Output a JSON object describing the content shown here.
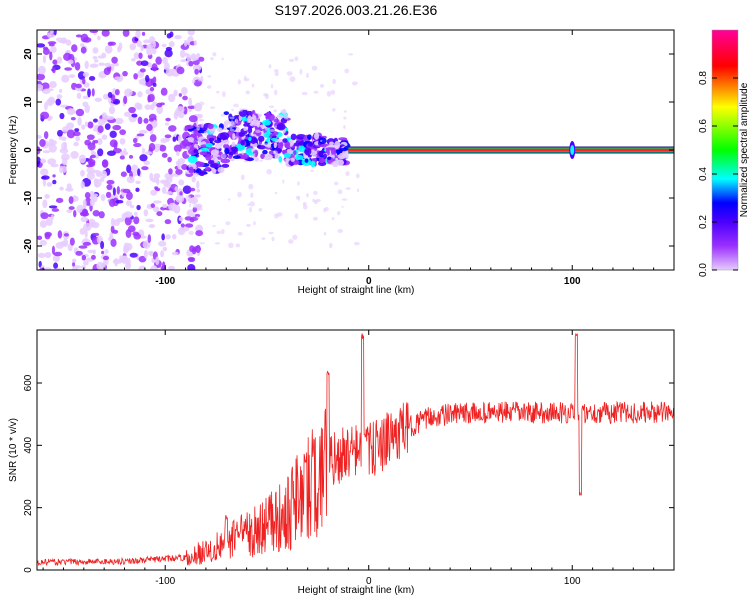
{
  "title": "S197.2026.003.21.26.E36",
  "chart_data": [
    {
      "type": "heatmap",
      "name": "spectrogram",
      "xlabel": "Height of straight line (km)",
      "ylabel": "Frequency (Hz)",
      "xlim": [
        -163,
        150
      ],
      "ylim": [
        -25,
        25
      ],
      "xticks": [
        -100,
        0,
        100
      ],
      "yticks": [
        -20,
        -10,
        0,
        10,
        20
      ],
      "colorbar": {
        "label": "Normalized spectral amplitude",
        "range": [
          0,
          1
        ],
        "ticks": [
          "0.0",
          "0.2",
          "0.4",
          "0.6",
          "0.8"
        ],
        "colors": [
          "#e6ccff",
          "#9b30ff",
          "#4b00ff",
          "#0000ff",
          "#00ffff",
          "#00ff00",
          "#ffff00",
          "#ff0000",
          "#ff0099"
        ]
      },
      "features": {
        "noise_region_km": [
          -163,
          -90
        ],
        "emerging_band_km": [
          -90,
          -25
        ],
        "stable_line_start_km": -10,
        "stable_line_freq_hz": 0,
        "spike_km": 100
      }
    },
    {
      "type": "line",
      "name": "snr",
      "xlabel": "Height of straight line (km)",
      "ylabel": "SNR (10 * v/v)",
      "xlim": [
        -163,
        150
      ],
      "ylim": [
        0,
        770
      ],
      "xticks": [
        -100,
        0,
        100
      ],
      "yticks": [
        0,
        200,
        400,
        600
      ],
      "color": "#ee2222",
      "trend": [
        [
          -163,
          25
        ],
        [
          -120,
          28
        ],
        [
          -90,
          40
        ],
        [
          -70,
          90
        ],
        [
          -50,
          150
        ],
        [
          -40,
          200
        ],
        [
          -30,
          270
        ],
        [
          -20,
          340
        ],
        [
          -10,
          380
        ],
        [
          0,
          380
        ],
        [
          10,
          420
        ],
        [
          20,
          460
        ],
        [
          30,
          490
        ],
        [
          40,
          500
        ],
        [
          60,
          505
        ],
        [
          80,
          505
        ],
        [
          100,
          505
        ],
        [
          120,
          505
        ],
        [
          150,
          505
        ]
      ],
      "spikes": [
        [
          -70,
          170
        ],
        [
          -20,
          630
        ],
        [
          -3,
          750
        ],
        [
          102,
          760
        ],
        [
          104,
          240
        ]
      ]
    }
  ]
}
